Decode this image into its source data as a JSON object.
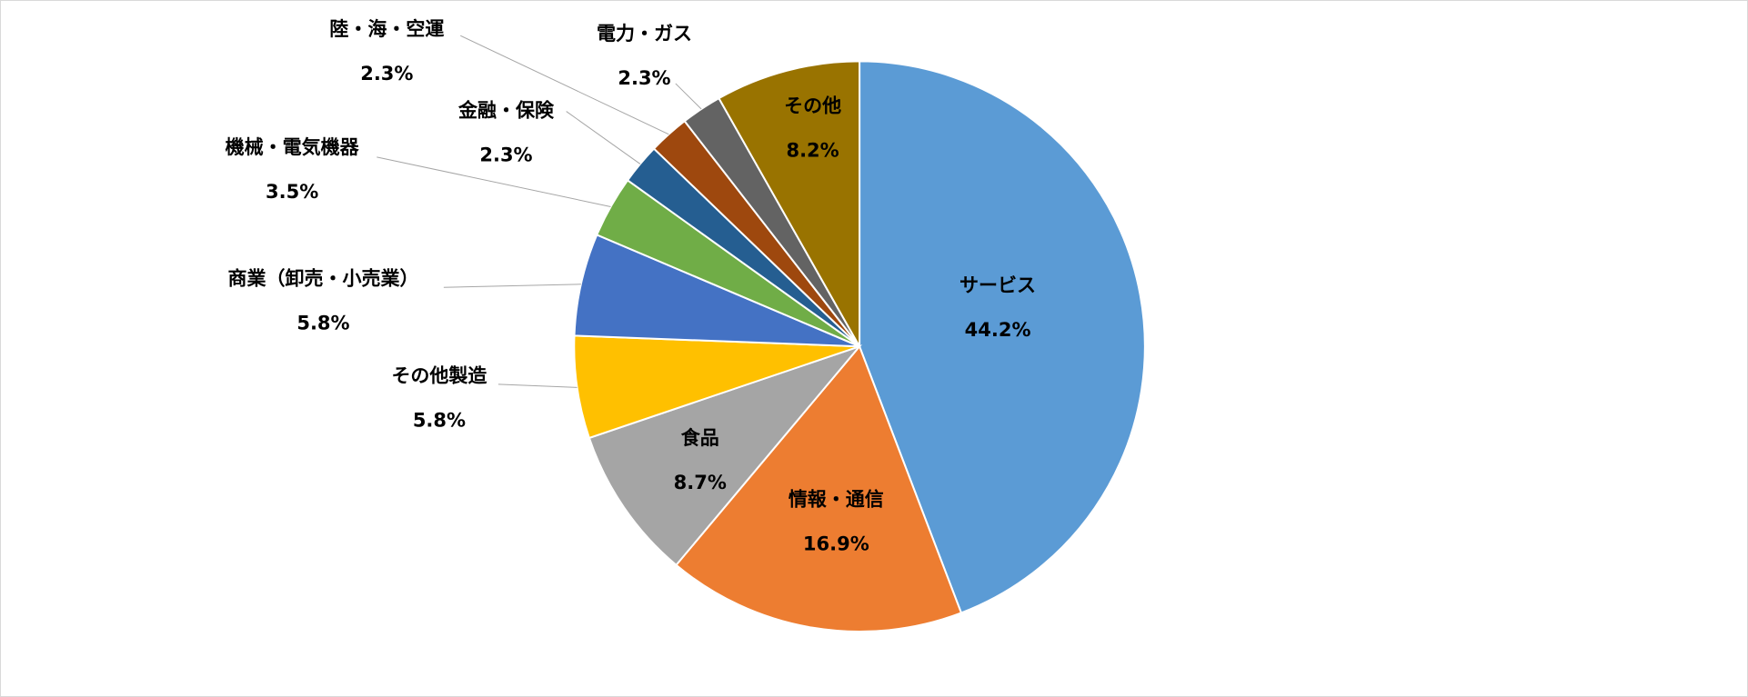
{
  "chart_data": {
    "type": "pie",
    "categories": [
      "サービス",
      "情報・通信",
      "食品",
      "その他製造",
      "商業（卸売・小売業）",
      "機械・電気機器",
      "金融・保険",
      "陸・海・空運",
      "電力・ガス",
      "その他"
    ],
    "values": [
      44.2,
      16.9,
      8.7,
      5.8,
      5.8,
      3.5,
      2.3,
      2.3,
      2.3,
      8.2
    ],
    "value_labels": [
      "44.2%",
      "16.9%",
      "8.7%",
      "5.8%",
      "5.8%",
      "3.5%",
      "2.3%",
      "2.3%",
      "2.3%",
      "8.2%"
    ],
    "colors": [
      "#5b9bd5",
      "#ed7d31",
      "#a5a5a5",
      "#ffc000",
      "#4472c4",
      "#70ad47",
      "#255e91",
      "#9e480e",
      "#636363",
      "#997300"
    ]
  }
}
